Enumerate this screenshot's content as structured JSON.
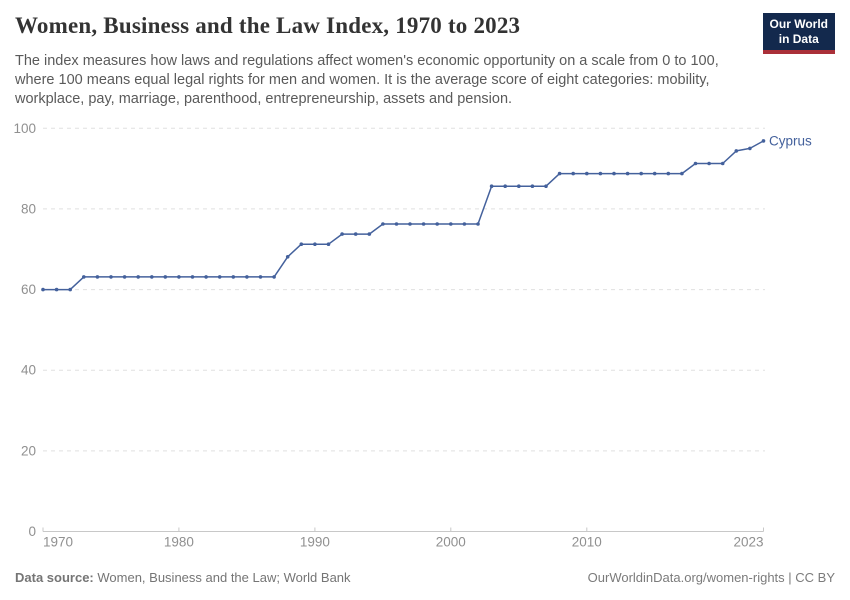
{
  "header": {
    "title": "Women, Business and the Law Index, 1970 to 2023",
    "subtitle_lines": [
      "The index measures how laws and regulations affect women's economic opportunity on a scale from 0 to 100,",
      "where 100 means equal legal rights for men and women. It is the average score of eight categories: mobility,",
      "workplace, pay, marriage, parenthood, entrepreneurship, assets and pension."
    ],
    "logo": {
      "line1": "Our World",
      "line2": "in Data",
      "bg_color": "#13294D",
      "accent_color": "#AA3039"
    }
  },
  "chart_data": {
    "type": "line",
    "title": "Women, Business and the Law Index, 1970 to 2023",
    "xlabel": "",
    "ylabel": "",
    "xlim": [
      1970,
      2023
    ],
    "ylim": [
      0,
      100
    ],
    "x_ticks": [
      1970,
      1980,
      1990,
      2000,
      2010,
      2023
    ],
    "y_ticks": [
      0,
      20,
      40,
      60,
      80,
      100
    ],
    "grid": "horizontal dashed gridlines",
    "legend": "label at end of line",
    "x": [
      1970,
      1971,
      1972,
      1973,
      1974,
      1975,
      1976,
      1977,
      1978,
      1979,
      1980,
      1981,
      1982,
      1983,
      1984,
      1985,
      1986,
      1987,
      1988,
      1989,
      1990,
      1991,
      1992,
      1993,
      1994,
      1995,
      1996,
      1997,
      1998,
      1999,
      2000,
      2001,
      2002,
      2003,
      2004,
      2005,
      2006,
      2007,
      2008,
      2009,
      2010,
      2011,
      2012,
      2013,
      2014,
      2015,
      2016,
      2017,
      2018,
      2019,
      2020,
      2021,
      2022,
      2023
    ],
    "series": [
      {
        "name": "Cyprus",
        "color": "#44619C",
        "values": [
          60,
          60,
          60,
          63.125,
          63.125,
          63.125,
          63.125,
          63.125,
          63.125,
          63.125,
          63.125,
          63.125,
          63.125,
          63.125,
          63.125,
          63.125,
          63.125,
          63.125,
          68.125,
          71.25,
          71.25,
          71.25,
          73.75,
          73.75,
          73.75,
          76.25,
          76.25,
          76.25,
          76.25,
          76.25,
          76.25,
          76.25,
          76.25,
          85.625,
          85.625,
          85.625,
          85.625,
          85.625,
          88.75,
          88.75,
          88.75,
          88.75,
          88.75,
          88.75,
          88.75,
          88.75,
          88.75,
          88.75,
          91.25,
          91.25,
          91.25,
          94.375,
          95,
          96.875
        ]
      }
    ],
    "axis_label_color": "#909090",
    "gridline_color": "#e0e0e0",
    "axis_line_color": "#c8c8c8"
  },
  "footer": {
    "source_label": "Data source:",
    "source_value": "Women, Business and the Law; World Bank",
    "attribution": "OurWorldinData.org/women-rights | CC BY"
  }
}
